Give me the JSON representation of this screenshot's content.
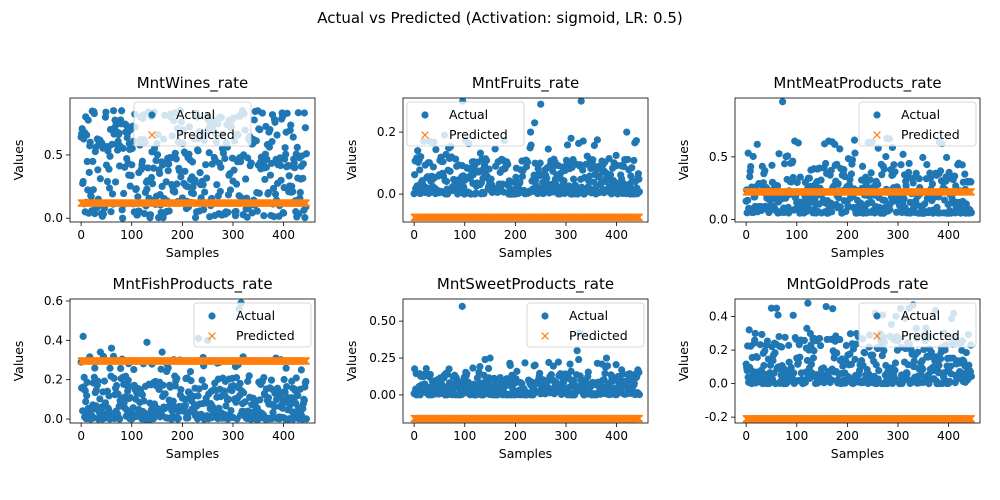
{
  "figure": {
    "suptitle": "Actual vs Predicted (Activation: sigmoid, LR: 0.5)"
  },
  "colors": {
    "actual": "#1f77b4",
    "predicted": "#ff7f0e",
    "axes": "#000000",
    "legend_border": "#cccccc"
  },
  "chart_data": [
    {
      "type": "scatter",
      "title": "MntWines_rate",
      "xlabel": "Samples",
      "ylabel": "Values",
      "xlim": [
        -22,
        462
      ],
      "ylim": [
        -0.03,
        0.95
      ],
      "xticks": [
        0,
        100,
        200,
        300,
        400
      ],
      "yticks": [
        0.0,
        0.5
      ],
      "n_samples": 446,
      "legend": {
        "position": "upper center",
        "entries": [
          "Actual",
          "Predicted"
        ]
      },
      "series": [
        {
          "name": "Actual",
          "marker": "o",
          "range": [
            0.0,
            0.93
          ],
          "typical": [
            0.05,
            0.85
          ],
          "outliers": []
        },
        {
          "name": "Predicted",
          "marker": "x",
          "constant": 0.12
        }
      ]
    },
    {
      "type": "scatter",
      "title": "MntFruits_rate",
      "xlabel": "Samples",
      "ylabel": "Values",
      "xlim": [
        -22,
        462
      ],
      "ylim": [
        -0.09,
        0.31
      ],
      "xticks": [
        0,
        100,
        200,
        300,
        400
      ],
      "yticks": [
        0.0,
        0.2
      ],
      "n_samples": 446,
      "legend": {
        "position": "upper left",
        "entries": [
          "Actual",
          "Predicted"
        ]
      },
      "series": [
        {
          "name": "Actual",
          "marker": "o",
          "range": [
            0.0,
            0.3
          ],
          "typical": [
            0.0,
            0.12
          ],
          "outliers": [
            [
              96,
              0.3
            ],
            [
              330,
              0.3
            ],
            [
              250,
              0.29
            ],
            [
              238,
              0.23
            ],
            [
              420,
              0.2
            ],
            [
              230,
              0.2
            ],
            [
              310,
              0.18
            ],
            [
              60,
              0.19
            ]
          ]
        },
        {
          "name": "Predicted",
          "marker": "x",
          "constant": -0.075
        }
      ]
    },
    {
      "type": "scatter",
      "title": "MntMeatProducts_rate",
      "xlabel": "Samples",
      "ylabel": "Values",
      "xlim": [
        -22,
        462
      ],
      "ylim": [
        -0.02,
        0.97
      ],
      "xticks": [
        0,
        100,
        200,
        300,
        400
      ],
      "yticks": [
        0.0,
        0.5
      ],
      "n_samples": 446,
      "legend": {
        "position": "upper right",
        "entries": [
          "Actual",
          "Predicted"
        ]
      },
      "series": [
        {
          "name": "Actual",
          "marker": "o",
          "range": [
            0.02,
            0.94
          ],
          "typical": [
            0.05,
            0.45
          ],
          "outliers": [
            [
              72,
              0.94
            ],
            [
              170,
              0.62
            ],
            [
              175,
              0.6
            ],
            [
              22,
              0.6
            ],
            [
              4,
              0.53
            ],
            [
              310,
              0.52
            ],
            [
              215,
              0.53
            ]
          ]
        },
        {
          "name": "Predicted",
          "marker": "x",
          "constant": 0.22
        }
      ]
    },
    {
      "type": "scatter",
      "title": "MntFishProducts_rate",
      "xlabel": "Samples",
      "ylabel": "Values",
      "xlim": [
        -22,
        462
      ],
      "ylim": [
        -0.02,
        0.61
      ],
      "xticks": [
        0,
        100,
        200,
        300,
        400
      ],
      "yticks": [
        0.0,
        0.2,
        0.4,
        0.6
      ],
      "n_samples": 446,
      "legend": {
        "position": "upper right",
        "entries": [
          "Actual",
          "Predicted"
        ]
      },
      "series": [
        {
          "name": "Actual",
          "marker": "o",
          "range": [
            0.0,
            0.59
          ],
          "typical": [
            0.0,
            0.22
          ],
          "outliers": [
            [
              316,
              0.59
            ],
            [
              312,
              0.56
            ],
            [
              4,
              0.42
            ],
            [
              130,
              0.39
            ],
            [
              232,
              0.41
            ],
            [
              250,
              0.4
            ],
            [
              38,
              0.34
            ],
            [
              160,
              0.34
            ],
            [
              60,
              0.36
            ],
            [
              385,
              0.31
            ]
          ]
        },
        {
          "name": "Predicted",
          "marker": "x",
          "constant": 0.295
        }
      ]
    },
    {
      "type": "scatter",
      "title": "MntSweetProducts_rate",
      "xlabel": "Samples",
      "ylabel": "Values",
      "xlim": [
        -22,
        462
      ],
      "ylim": [
        -0.19,
        0.65
      ],
      "xticks": [
        0,
        100,
        200,
        300,
        400
      ],
      "yticks": [
        0.0,
        0.25,
        0.5
      ],
      "n_samples": 446,
      "legend": {
        "position": "upper right",
        "entries": [
          "Actual",
          "Predicted"
        ]
      },
      "series": [
        {
          "name": "Actual",
          "marker": "o",
          "range": [
            0.0,
            0.6
          ],
          "typical": [
            0.0,
            0.15
          ],
          "outliers": [
            [
              95,
              0.6
            ],
            [
              327,
              0.42
            ],
            [
              322,
              0.3
            ],
            [
              380,
              0.25
            ],
            [
              150,
              0.25
            ],
            [
              140,
              0.24
            ],
            [
              325,
              0.24
            ],
            [
              190,
              0.2
            ],
            [
              410,
              0.17
            ]
          ]
        },
        {
          "name": "Predicted",
          "marker": "x",
          "constant": -0.16
        }
      ]
    },
    {
      "type": "scatter",
      "title": "MntGoldProds_rate",
      "xlabel": "Samples",
      "ylabel": "Values",
      "xlim": [
        -22,
        462
      ],
      "ylim": [
        -0.235,
        0.505
      ],
      "xticks": [
        0,
        100,
        200,
        300,
        400
      ],
      "yticks": [
        -0.2,
        0.0,
        0.2,
        0.4
      ],
      "n_samples": 446,
      "legend": {
        "position": "upper right",
        "entries": [
          "Actual",
          "Predicted"
        ]
      },
      "series": [
        {
          "name": "Actual",
          "marker": "o",
          "range": [
            0.0,
            0.48
          ],
          "typical": [
            0.0,
            0.3
          ],
          "outliers": [
            [
              122,
              0.48
            ],
            [
              330,
              0.47
            ],
            [
              158,
              0.46
            ],
            [
              50,
              0.45
            ],
            [
              60,
              0.45
            ],
            [
              410,
              0.42
            ],
            [
              270,
              0.41
            ],
            [
              255,
              0.42
            ]
          ]
        },
        {
          "name": "Predicted",
          "marker": "x",
          "constant": -0.21
        }
      ]
    }
  ]
}
